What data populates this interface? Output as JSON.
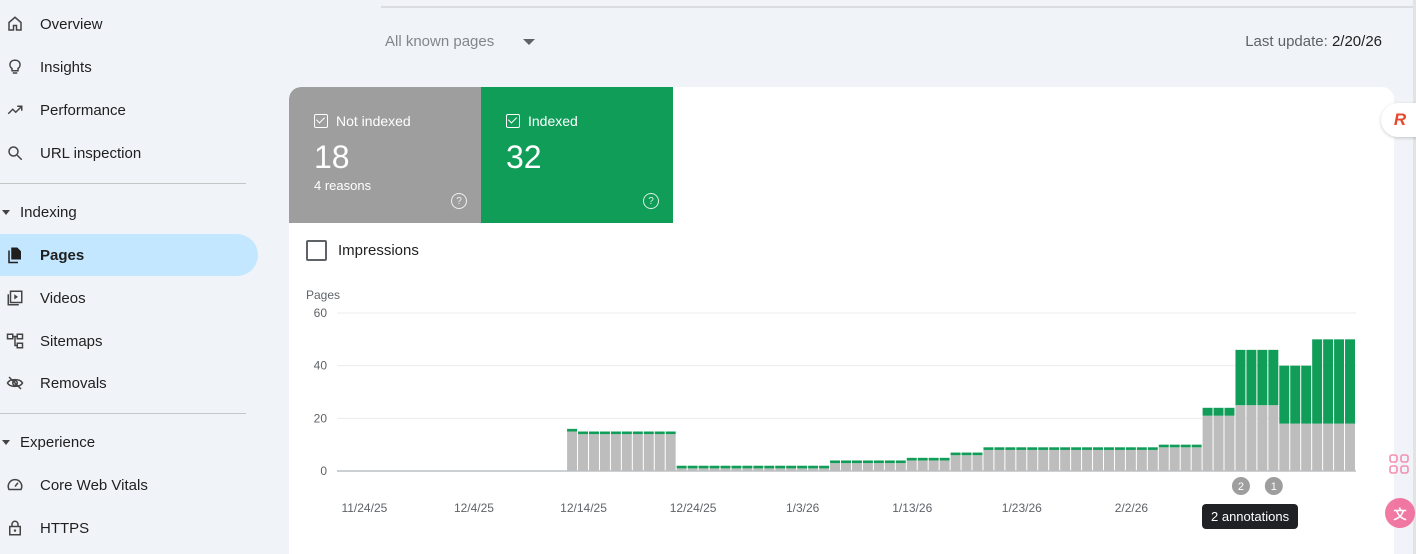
{
  "sidebar": {
    "items": [
      {
        "label": "Overview",
        "icon": "home-icon"
      },
      {
        "label": "Insights",
        "icon": "lightbulb-icon"
      },
      {
        "label": "Performance",
        "icon": "trending-up-icon"
      },
      {
        "label": "URL inspection",
        "icon": "search-icon"
      }
    ],
    "indexing": {
      "label": "Indexing",
      "items": [
        {
          "label": "Pages",
          "icon": "pages-icon",
          "active": true
        },
        {
          "label": "Videos",
          "icon": "video-library-icon"
        },
        {
          "label": "Sitemaps",
          "icon": "sitemap-icon"
        },
        {
          "label": "Removals",
          "icon": "visibility-off-icon"
        }
      ]
    },
    "experience": {
      "label": "Experience",
      "items": [
        {
          "label": "Core Web Vitals",
          "icon": "speed-icon"
        },
        {
          "label": "HTTPS",
          "icon": "lock-icon"
        }
      ]
    }
  },
  "header": {
    "filter_label": "All known pages",
    "last_update_label": "Last update:",
    "last_update_value": "2/20/26"
  },
  "summary": {
    "not_indexed": {
      "label": "Not indexed",
      "count": "18",
      "sub": "4 reasons",
      "color": "#9e9e9e"
    },
    "indexed": {
      "label": "Indexed",
      "count": "32",
      "color": "#0f9d58"
    }
  },
  "impressions_label": "Impressions",
  "annotations": {
    "markers": [
      "2",
      "1"
    ],
    "tooltip": "2 annotations"
  },
  "chart_data": {
    "type": "bar",
    "stacked": true,
    "ylabel": "Pages",
    "ylim": [
      0,
      60
    ],
    "yticks": [
      0,
      20,
      40,
      60
    ],
    "grid": true,
    "xtick_labels": [
      "11/24/25",
      "12/4/25",
      "12/14/25",
      "12/24/25",
      "1/3/26",
      "1/13/26",
      "1/23/26",
      "2/2/26"
    ],
    "start_date": "2025-11-22",
    "series": [
      {
        "name": "Not indexed",
        "color": "#bdbdbd",
        "values": [
          0,
          0,
          0,
          0,
          0,
          0,
          0,
          0,
          0,
          0,
          0,
          0,
          0,
          0,
          0,
          0,
          0,
          0,
          0,
          0,
          0,
          15,
          14,
          14,
          14,
          14,
          14,
          14,
          14,
          14,
          14,
          1,
          1,
          1,
          1,
          1,
          1,
          1,
          1,
          1,
          1,
          1,
          1,
          1,
          1,
          3,
          3,
          3,
          3,
          3,
          3,
          3,
          4,
          4,
          4,
          4,
          6,
          6,
          6,
          8,
          8,
          8,
          8,
          8,
          8,
          8,
          8,
          8,
          8,
          8,
          8,
          8,
          8,
          8,
          8,
          9,
          9,
          9,
          9,
          21,
          21,
          21,
          25,
          25,
          25,
          25,
          18,
          18,
          18,
          18,
          18,
          18,
          18
        ]
      },
      {
        "name": "Indexed",
        "color": "#0f9d58",
        "values": [
          0,
          0,
          0,
          0,
          0,
          0,
          0,
          0,
          0,
          0,
          0,
          0,
          0,
          0,
          0,
          0,
          0,
          0,
          0,
          0,
          0,
          1,
          1,
          1,
          1,
          1,
          1,
          1,
          1,
          1,
          1,
          1,
          1,
          1,
          1,
          1,
          1,
          1,
          1,
          1,
          1,
          1,
          1,
          1,
          1,
          1,
          1,
          1,
          1,
          1,
          1,
          1,
          1,
          1,
          1,
          1,
          1,
          1,
          1,
          1,
          1,
          1,
          1,
          1,
          1,
          1,
          1,
          1,
          1,
          1,
          1,
          1,
          1,
          1,
          1,
          1,
          1,
          1,
          1,
          3,
          3,
          3,
          21,
          21,
          21,
          21,
          22,
          22,
          22,
          32,
          32,
          32,
          32
        ]
      }
    ]
  }
}
